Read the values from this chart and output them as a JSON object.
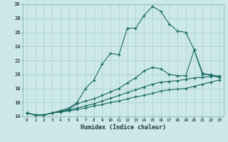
{
  "xlabel": "Humidex (Indice chaleur)",
  "x": [
    0,
    1,
    2,
    3,
    4,
    5,
    6,
    7,
    8,
    9,
    10,
    11,
    12,
    13,
    14,
    15,
    16,
    17,
    18,
    19,
    20,
    21,
    22,
    23
  ],
  "line1": [
    14.5,
    14.2,
    14.2,
    14.5,
    14.8,
    15.2,
    16.0,
    18.0,
    19.2,
    21.5,
    23.0,
    22.8,
    26.6,
    26.6,
    28.4,
    29.7,
    29.0,
    27.2,
    26.2,
    26.0,
    23.5,
    20.2,
    19.8,
    19.6
  ],
  "line2": [
    14.5,
    14.2,
    14.2,
    14.5,
    14.8,
    15.0,
    15.8,
    16.2,
    16.5,
    17.0,
    17.5,
    18.0,
    18.8,
    19.5,
    20.5,
    21.0,
    20.8,
    20.0,
    19.8,
    19.8,
    23.5,
    20.0,
    20.0,
    19.6
  ],
  "line3": [
    14.5,
    14.2,
    14.2,
    14.5,
    14.7,
    14.9,
    15.2,
    15.5,
    15.8,
    16.2,
    16.6,
    17.0,
    17.4,
    17.8,
    18.2,
    18.6,
    18.9,
    19.0,
    19.1,
    19.3,
    19.5,
    19.6,
    19.7,
    19.8
  ],
  "line4": [
    14.5,
    14.2,
    14.2,
    14.5,
    14.6,
    14.8,
    15.0,
    15.2,
    15.5,
    15.7,
    16.0,
    16.2,
    16.5,
    16.8,
    17.0,
    17.3,
    17.6,
    17.8,
    17.9,
    18.0,
    18.3,
    18.6,
    18.9,
    19.2
  ],
  "bg_color": "#cce8ea",
  "grid_color": "#aacccc",
  "line_color": "#1a6b60",
  "ylim": [
    14,
    30
  ],
  "xlim": [
    -0.5,
    23.5
  ],
  "yticks": [
    14,
    16,
    18,
    20,
    22,
    24,
    26,
    28,
    30
  ]
}
